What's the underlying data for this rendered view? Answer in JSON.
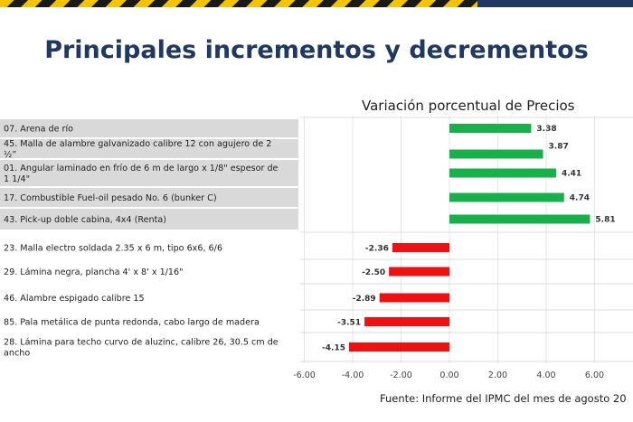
{
  "header": {
    "title": "Principales incrementos y decrementos",
    "source": "Fuente: Informe del IPMC del mes de agosto 20"
  },
  "colors": {
    "title": "#1f3864",
    "increase": "#17b04b",
    "decrease": "#ee1111",
    "label_band": "#d9d9d9",
    "stripe_yellow": "#f5c400",
    "stripe_dark": "#1a1a1a",
    "navy": "#1f3864"
  },
  "chart_data": {
    "type": "bar",
    "orientation": "horizontal",
    "title": "Variación porcentual de Precios",
    "xlim": [
      -6,
      6.5
    ],
    "x_ticks": [
      "-6.00",
      "-4.00",
      "-2.00",
      "0.00",
      "2.00",
      "4.00",
      "6.00"
    ],
    "x_tick_values": [
      -6,
      -4,
      -2,
      0,
      2,
      4,
      6
    ],
    "categories": [
      "07. Arena de río",
      "45. Malla de alambre galvanizado calibre 12 con agujero de 2 ½”",
      "01. Angular laminado en frío de 6 m de largo x 1/8\" espesor de 1 1/4\"",
      "17. Combustible Fuel-oil pesado No. 6 (bunker C)",
      "43. Pick-up doble cabina, 4x4 (Renta)",
      "23. Malla electro soldada 2.35 x 6 m, tipo 6x6, 6/6",
      "29. Lámina negra, plancha 4' x 8' x 1/16\"",
      "46. Alambre espigado calibre 15",
      "85. Pala metálica de punta redonda, cabo largo de madera",
      "28. Lámina para techo curvo de aluzinc, calibre 26, 30.5 cm de ancho"
    ],
    "values": [
      3.38,
      3.87,
      4.41,
      4.74,
      5.81,
      -2.36,
      -2.5,
      -2.89,
      -3.51,
      -4.15
    ],
    "value_labels": [
      "3.38",
      "3.87",
      "4.41",
      "4.74",
      "5.81",
      "-2.36",
      "-2.50",
      "-2.89",
      "-3.51",
      "-4.15"
    ]
  }
}
